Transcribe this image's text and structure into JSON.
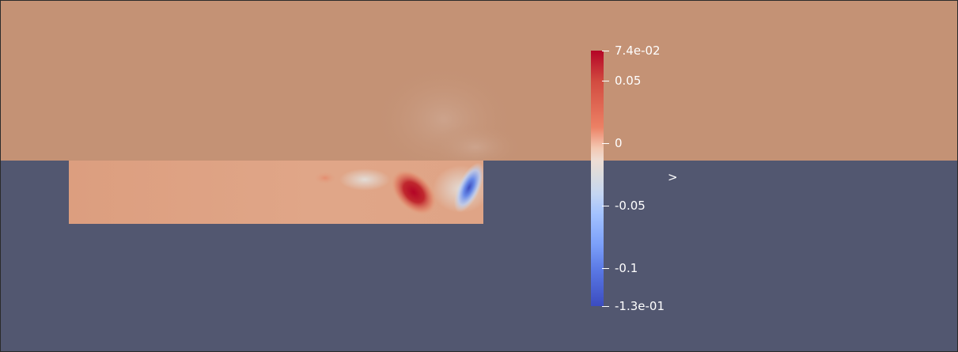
{
  "viewport": {
    "background_color": "#525770",
    "field_color": "#c49275",
    "colormap": "Cool to Warm"
  },
  "scalar_bar": {
    "title": "v",
    "title_displayed": ">",
    "range": [
      -0.13,
      0.074
    ],
    "labels": [
      {
        "text": "7.4e-02",
        "value": 0.074
      },
      {
        "text": "0.05",
        "value": 0.05
      },
      {
        "text": "0",
        "value": 0
      },
      {
        "text": "-0.05",
        "value": -0.05
      },
      {
        "text": "-0.1",
        "value": -0.1
      },
      {
        "text": "-1.3e-01",
        "value": -0.13
      }
    ]
  },
  "vortices": [
    {
      "sign": "positive",
      "color": "#b40426"
    },
    {
      "sign": "negative",
      "color": "#3b4cc0"
    }
  ]
}
